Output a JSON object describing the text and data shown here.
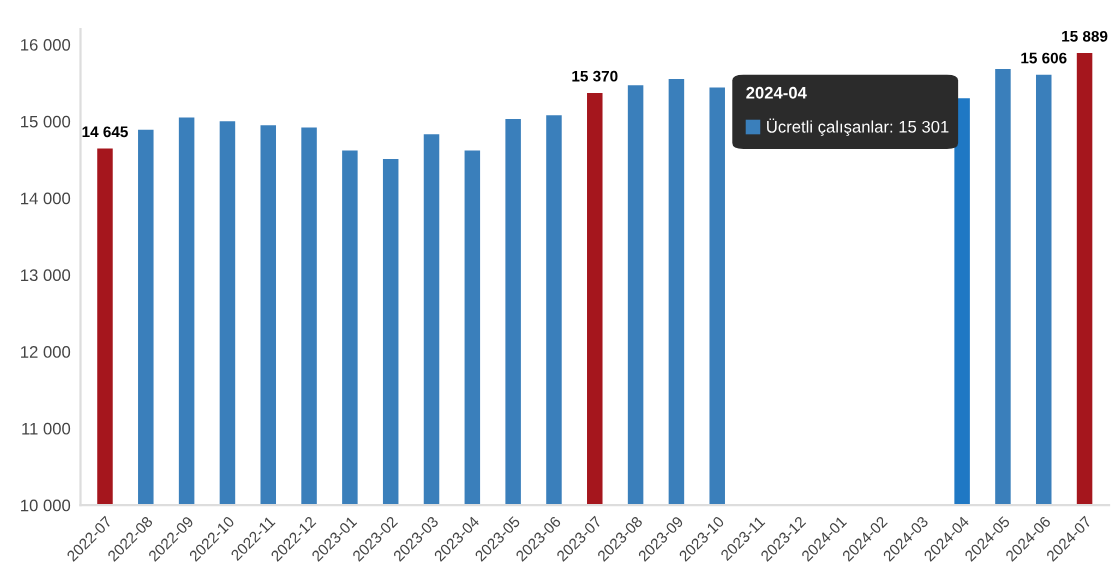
{
  "chart_data": {
    "type": "bar",
    "categories": [
      "2022-07",
      "2022-08",
      "2022-09",
      "2022-10",
      "2022-11",
      "2022-12",
      "2023-01",
      "2023-02",
      "2023-03",
      "2023-04",
      "2023-05",
      "2023-06",
      "2023-07",
      "2023-08",
      "2023-09",
      "2023-10",
      "2023-11",
      "2023-12",
      "2024-01",
      "2024-02",
      "2024-03",
      "2024-04",
      "2024-05",
      "2024-06",
      "2024-07"
    ],
    "values": [
      14645,
      14890,
      15050,
      15000,
      14950,
      14920,
      14620,
      14510,
      14830,
      14620,
      15030,
      15080,
      15370,
      15470,
      15550,
      15440,
      null,
      null,
      null,
      null,
      null,
      15301,
      15680,
      15606,
      15889
    ],
    "colors": [
      "#a5161d",
      "#3a7fbb",
      "#3a7fbb",
      "#3a7fbb",
      "#3a7fbb",
      "#3a7fbb",
      "#3a7fbb",
      "#3a7fbb",
      "#3a7fbb",
      "#3a7fbb",
      "#3a7fbb",
      "#3a7fbb",
      "#a5161d",
      "#3a7fbb",
      "#3a7fbb",
      "#3a7fbb",
      "#3a7fbb",
      "#3a7fbb",
      "#3a7fbb",
      "#3a7fbb",
      "#3a7fbb",
      "#1f78c4",
      "#3a7fbb",
      "#3a7fbb",
      "#a5161d"
    ],
    "value_labels": [
      "14 645",
      null,
      null,
      null,
      null,
      null,
      null,
      null,
      null,
      null,
      null,
      null,
      "15 370",
      null,
      null,
      null,
      null,
      null,
      null,
      null,
      null,
      null,
      null,
      "15 606",
      "15 889"
    ],
    "annotations": [
      "2024-04",
      "Ücretli çalışanlar: 15 301"
    ],
    "ylim": [
      10000,
      16200
    ],
    "yticks": [
      {
        "value": 10000,
        "label": "10 000"
      },
      {
        "value": 11000,
        "label": "11 000"
      },
      {
        "value": 12000,
        "label": "12 000"
      },
      {
        "value": 13000,
        "label": "13 000"
      },
      {
        "value": 14000,
        "label": "14 000"
      },
      {
        "value": 15000,
        "label": "15 000"
      },
      {
        "value": 16000,
        "label": "16 000"
      }
    ],
    "grid": false,
    "legend": false
  }
}
